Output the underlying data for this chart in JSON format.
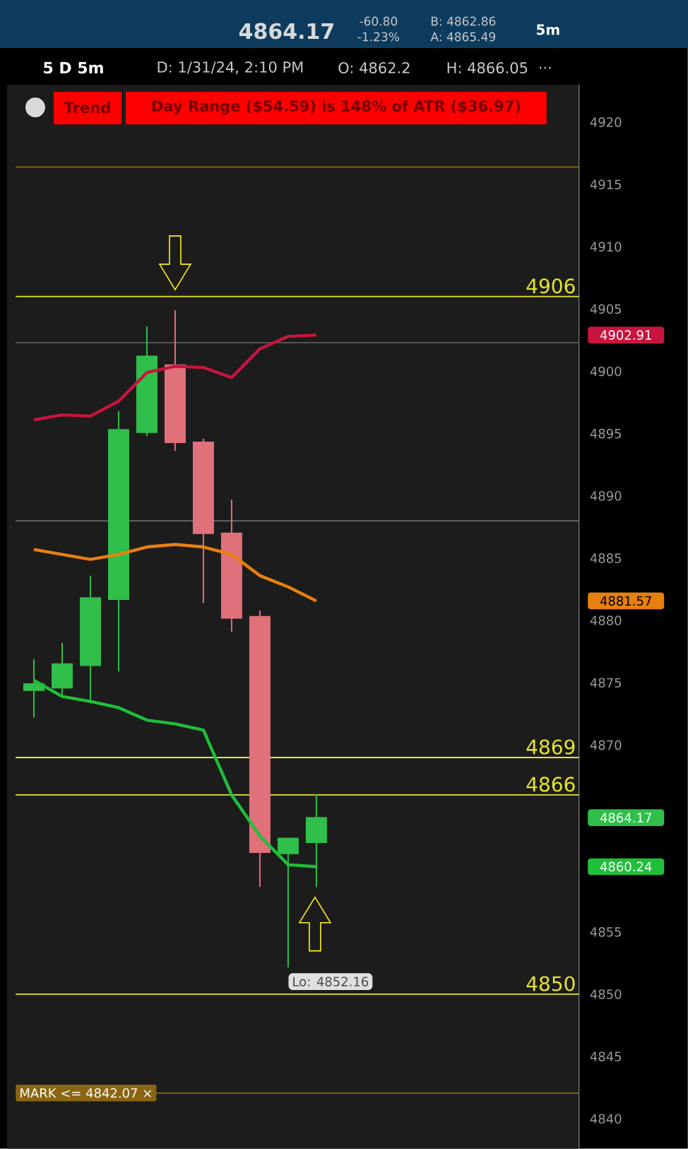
{
  "chart_data": {
    "type": "candlestick",
    "categories": [
      null,
      null,
      null,
      null,
      null,
      null,
      null,
      null,
      null,
      null,
      null
    ],
    "ohlc": [
      [
        4874.4,
        4876.9,
        4872.2,
        4874.9
      ],
      [
        4874.6,
        4878.2,
        4873.9,
        4876.5
      ],
      [
        4876.4,
        4883.6,
        4873.4,
        4881.8
      ],
      [
        4881.7,
        4896.8,
        4875.9,
        4895.3
      ],
      [
        4895.1,
        4903.6,
        4894.8,
        4901.2
      ],
      [
        4900.5,
        4904.9,
        4893.6,
        4894.3
      ],
      [
        4894.3,
        4894.6,
        4881.4,
        4887.0
      ],
      [
        4887.0,
        4889.7,
        4879.1,
        4880.2
      ],
      [
        4880.3,
        4880.8,
        4858.6,
        4861.4
      ],
      [
        4861.3,
        4862.5,
        4852.16,
        4862.5
      ],
      [
        4862.2,
        4866.05,
        4858.6,
        4864.17
      ]
    ],
    "colors": [
      "#2fbf4a",
      "#2fbf4a",
      "#2fbf4a",
      "#2fbf4a",
      "#2fbf4a",
      "#e0707a",
      "#e0707a",
      "#e0707a",
      "#e0707a",
      "#2fbf4a",
      "#2fbf4a"
    ],
    "series": [
      {
        "type": "line",
        "color": "#c8143f",
        "values": [
          4896.1,
          4896.5,
          4896.4,
          4897.6,
          4899.9,
          4900.4,
          4900.3,
          4899.5,
          4901.8,
          4902.8,
          4902.91
        ]
      },
      {
        "type": "line",
        "color": "#e8800e",
        "values": [
          4885.7,
          4885.3,
          4884.9,
          4885.3,
          4885.9,
          4886.1,
          4885.9,
          4885.3,
          4883.6,
          4882.7,
          4881.57
        ]
      },
      {
        "type": "line",
        "color": "#1fbf3a",
        "values": [
          4875.2,
          4873.9,
          4873.5,
          4873.0,
          4872.0,
          4871.7,
          4871.2,
          4866.0,
          4862.7,
          4860.4,
          4860.24
        ]
      }
    ],
    "ylim": [
      4837.6,
      4923
    ],
    "yticks": [
      4840,
      4845,
      4850,
      4855,
      4870,
      4875,
      4880,
      4885,
      4890,
      4895,
      4900,
      4905,
      4910,
      4915,
      4920
    ],
    "tick_labels": "y",
    "ref_lines": [
      {
        "axis": "y",
        "value": 4906,
        "label": "4906",
        "color": "#e6e62e"
      },
      {
        "axis": "y",
        "value": 4869,
        "label": "4869",
        "color": "#e6e62e"
      },
      {
        "axis": "y",
        "value": 4866,
        "label": "4866",
        "color": "#e6e62e"
      },
      {
        "axis": "y",
        "value": 4850,
        "label": "4850",
        "color": "#e6e62e"
      },
      {
        "axis": "y",
        "value": 4842.07,
        "label": "MARK <= 4842.07 ×",
        "color": "#8a6612"
      },
      {
        "axis": "y",
        "value": 4916.4,
        "color": "#8a6612"
      },
      {
        "axis": "y",
        "value": 4902.3,
        "color": "#5a5a5a"
      },
      {
        "axis": "y",
        "value": 4888,
        "color": "#6a6a6a"
      }
    ],
    "annotations": [
      "4864.17",
      "-60.80",
      "-1.23%",
      "B: 4862.86",
      "A: 4865.49",
      "5m",
      "5 D 5m",
      "D: 1/31/24, 2:10 PM",
      "O: 4862.2",
      "H: 4866.05",
      "...",
      "Trend",
      "Day Range ($54.59) is 148% of ATR ($36.97)",
      "Lo: 4852.16",
      "4902.91",
      "4881.57",
      "4864.17",
      "4860.24"
    ]
  }
}
